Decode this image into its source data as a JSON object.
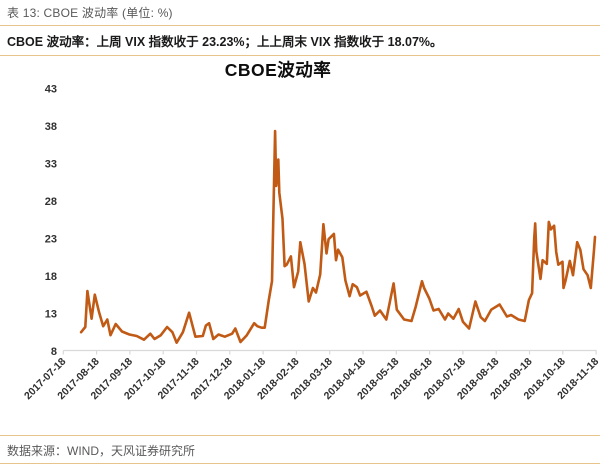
{
  "header": {
    "caption": "表 13: CBOE 波动率 (单位: %)",
    "summary": "CBOE 波动率：上周 VIX 指数收于 23.23%；上上周末 VIX 指数收于 18.07%。"
  },
  "footer": {
    "source": "数据来源：WIND，天风证券研究所"
  },
  "chart_data": {
    "type": "line",
    "title": "CBOE波动率",
    "ylabel": "",
    "xlabel": "",
    "ylim": [
      8,
      43
    ],
    "y_ticks": [
      43,
      38,
      33,
      28,
      23,
      18,
      13,
      8
    ],
    "x_ticks": [
      "2017-07-18",
      "2017-08-18",
      "2017-09-18",
      "2017-10-18",
      "2017-11-18",
      "2017-12-18",
      "2018-01-18",
      "2018-02-18",
      "2018-03-18",
      "2018-04-18",
      "2018-05-18",
      "2018-06-18",
      "2018-07-18",
      "2018-08-18",
      "2018-09-18",
      "2018-10-18",
      "2018-11-18"
    ],
    "grid": false,
    "legend_position": "none",
    "line_color": "#C05A15",
    "axis_color": "#D9D9D9",
    "series": [
      {
        "name": "CBOE波动率(VIX)",
        "points": [
          [
            "2017-08-04",
            10.5
          ],
          [
            "2017-08-08",
            11.2
          ],
          [
            "2017-08-10",
            16.0
          ],
          [
            "2017-08-14",
            12.3
          ],
          [
            "2017-08-17",
            15.5
          ],
          [
            "2017-08-21",
            13.2
          ],
          [
            "2017-08-25",
            11.3
          ],
          [
            "2017-08-29",
            12.2
          ],
          [
            "2017-09-01",
            10.1
          ],
          [
            "2017-09-06",
            11.6
          ],
          [
            "2017-09-12",
            10.6
          ],
          [
            "2017-09-19",
            10.2
          ],
          [
            "2017-09-26",
            10.0
          ],
          [
            "2017-10-03",
            9.5
          ],
          [
            "2017-10-09",
            10.3
          ],
          [
            "2017-10-13",
            9.6
          ],
          [
            "2017-10-19",
            10.1
          ],
          [
            "2017-10-25",
            11.2
          ],
          [
            "2017-10-30",
            10.5
          ],
          [
            "2017-11-03",
            9.1
          ],
          [
            "2017-11-09",
            10.5
          ],
          [
            "2017-11-15",
            13.1
          ],
          [
            "2017-11-21",
            9.9
          ],
          [
            "2017-11-28",
            10.0
          ],
          [
            "2017-12-01",
            11.4
          ],
          [
            "2017-12-04",
            11.7
          ],
          [
            "2017-12-08",
            9.6
          ],
          [
            "2017-12-13",
            10.2
          ],
          [
            "2017-12-19",
            9.9
          ],
          [
            "2017-12-26",
            10.3
          ],
          [
            "2017-12-29",
            11.0
          ],
          [
            "2018-01-03",
            9.2
          ],
          [
            "2018-01-09",
            10.1
          ],
          [
            "2018-01-16",
            11.7
          ],
          [
            "2018-01-19",
            11.3
          ],
          [
            "2018-01-23",
            11.1
          ],
          [
            "2018-01-26",
            11.1
          ],
          [
            "2018-01-30",
            14.8
          ],
          [
            "2018-02-02",
            17.3
          ],
          [
            "2018-02-05",
            37.3
          ],
          [
            "2018-02-06",
            30.0
          ],
          [
            "2018-02-08",
            33.5
          ],
          [
            "2018-02-09",
            29.1
          ],
          [
            "2018-02-12",
            25.6
          ],
          [
            "2018-02-14",
            19.3
          ],
          [
            "2018-02-16",
            19.5
          ],
          [
            "2018-02-20",
            20.6
          ],
          [
            "2018-02-23",
            16.5
          ],
          [
            "2018-02-27",
            18.6
          ],
          [
            "2018-03-01",
            22.5
          ],
          [
            "2018-03-05",
            19.6
          ],
          [
            "2018-03-09",
            14.6
          ],
          [
            "2018-03-13",
            16.4
          ],
          [
            "2018-03-16",
            15.8
          ],
          [
            "2018-03-20",
            18.2
          ],
          [
            "2018-03-23",
            24.9
          ],
          [
            "2018-03-26",
            21.0
          ],
          [
            "2018-03-28",
            22.9
          ],
          [
            "2018-04-02",
            23.6
          ],
          [
            "2018-04-04",
            20.1
          ],
          [
            "2018-04-06",
            21.5
          ],
          [
            "2018-04-10",
            20.5
          ],
          [
            "2018-04-13",
            17.4
          ],
          [
            "2018-04-17",
            15.3
          ],
          [
            "2018-04-20",
            16.9
          ],
          [
            "2018-04-24",
            16.5
          ],
          [
            "2018-04-27",
            15.4
          ],
          [
            "2018-05-03",
            15.9
          ],
          [
            "2018-05-08",
            14.0
          ],
          [
            "2018-05-11",
            12.7
          ],
          [
            "2018-05-16",
            13.4
          ],
          [
            "2018-05-22",
            12.2
          ],
          [
            "2018-05-29",
            17.0
          ],
          [
            "2018-06-01",
            13.5
          ],
          [
            "2018-06-08",
            12.2
          ],
          [
            "2018-06-15",
            12.0
          ],
          [
            "2018-06-19",
            13.9
          ],
          [
            "2018-06-25",
            17.3
          ],
          [
            "2018-06-27",
            16.4
          ],
          [
            "2018-07-02",
            15.0
          ],
          [
            "2018-07-06",
            13.4
          ],
          [
            "2018-07-11",
            13.6
          ],
          [
            "2018-07-17",
            12.2
          ],
          [
            "2018-07-20",
            13.0
          ],
          [
            "2018-07-25",
            12.3
          ],
          [
            "2018-07-30",
            13.6
          ],
          [
            "2018-08-03",
            11.9
          ],
          [
            "2018-08-09",
            11.0
          ],
          [
            "2018-08-15",
            14.6
          ],
          [
            "2018-08-20",
            12.5
          ],
          [
            "2018-08-24",
            12.0
          ],
          [
            "2018-08-30",
            13.5
          ],
          [
            "2018-09-07",
            14.2
          ],
          [
            "2018-09-14",
            12.6
          ],
          [
            "2018-09-18",
            12.8
          ],
          [
            "2018-09-25",
            12.2
          ],
          [
            "2018-10-01",
            12.0
          ],
          [
            "2018-10-05",
            14.8
          ],
          [
            "2018-10-08",
            15.7
          ],
          [
            "2018-10-10",
            23.0
          ],
          [
            "2018-10-11",
            25.0
          ],
          [
            "2018-10-12",
            21.3
          ],
          [
            "2018-10-16",
            17.6
          ],
          [
            "2018-10-18",
            20.1
          ],
          [
            "2018-10-22",
            19.6
          ],
          [
            "2018-10-24",
            25.2
          ],
          [
            "2018-10-26",
            24.2
          ],
          [
            "2018-10-29",
            24.7
          ],
          [
            "2018-10-31",
            21.2
          ],
          [
            "2018-11-02",
            19.5
          ],
          [
            "2018-11-06",
            19.9
          ],
          [
            "2018-11-07",
            16.4
          ],
          [
            "2018-11-09",
            17.4
          ],
          [
            "2018-11-13",
            20.0
          ],
          [
            "2018-11-16",
            18.1
          ],
          [
            "2018-11-20",
            22.5
          ],
          [
            "2018-11-23",
            21.5
          ],
          [
            "2018-11-26",
            18.9
          ],
          [
            "2018-11-30",
            18.1
          ],
          [
            "2018-12-03",
            16.4
          ],
          [
            "2018-12-06",
            21.3
          ],
          [
            "2018-12-07",
            23.2
          ]
        ]
      }
    ]
  }
}
